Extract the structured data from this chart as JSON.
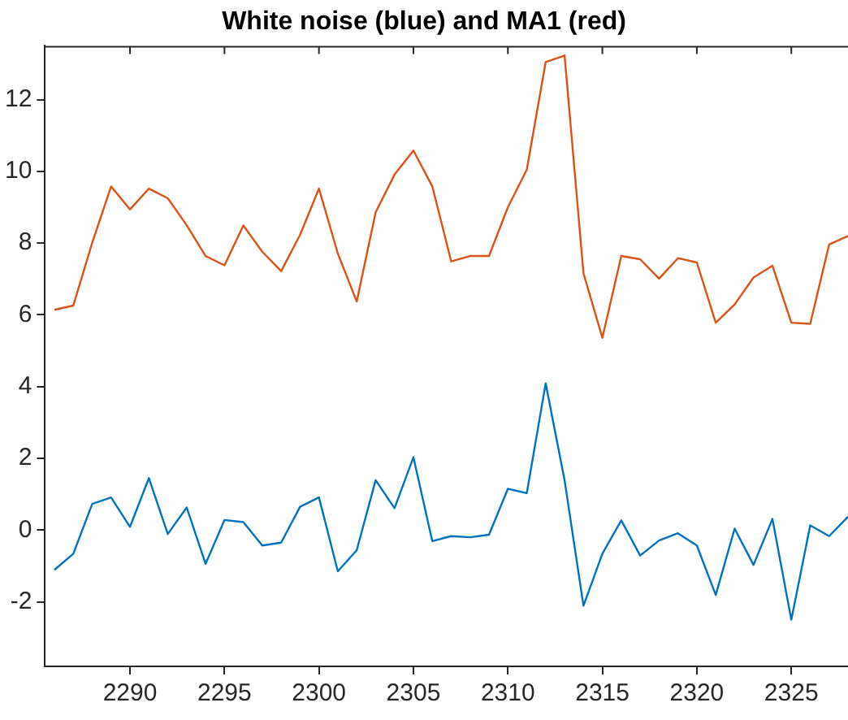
{
  "chart_data": {
    "type": "line",
    "title": "White noise (blue) and MA1 (red)",
    "x": [
      2286,
      2287,
      2288,
      2289,
      2290,
      2291,
      2292,
      2293,
      2294,
      2295,
      2296,
      2297,
      2298,
      2299,
      2300,
      2301,
      2302,
      2303,
      2304,
      2305,
      2306,
      2307,
      2308,
      2309,
      2310,
      2311,
      2312,
      2313,
      2314,
      2315,
      2316,
      2317,
      2318,
      2319,
      2320,
      2321,
      2322,
      2323,
      2324,
      2325,
      2326,
      2327,
      2328
    ],
    "series": [
      {
        "color": "#0072bd",
        "values": [
          -1.11,
          -0.66,
          0.73,
          0.91,
          0.09,
          1.45,
          -0.11,
          0.63,
          -0.94,
          0.28,
          0.22,
          -0.43,
          -0.35,
          0.65,
          0.91,
          -1.15,
          -0.56,
          1.39,
          0.61,
          2.03,
          -0.31,
          -0.17,
          -0.2,
          -0.13,
          1.15,
          1.03,
          4.09,
          1.39,
          -2.11,
          -0.66,
          0.27,
          -0.71,
          -0.29,
          -0.09,
          -0.43,
          -1.81,
          0.04,
          -0.97,
          0.31,
          -2.5,
          0.13,
          -0.17,
          0.37
        ]
      },
      {
        "color": "#d95319",
        "values": [
          6.14,
          6.26,
          8.01,
          9.58,
          8.94,
          9.52,
          9.25,
          8.5,
          7.64,
          7.38,
          8.49,
          7.76,
          7.22,
          8.23,
          9.52,
          7.71,
          6.37,
          8.86,
          9.91,
          10.58,
          9.58,
          7.49,
          7.64,
          7.64,
          9.0,
          10.05,
          13.05,
          13.23,
          7.16,
          5.36,
          7.64,
          7.55,
          7.01,
          7.58,
          7.46,
          5.78,
          6.29,
          7.04,
          7.37,
          5.78,
          5.75,
          7.96,
          8.2
        ]
      }
    ],
    "xlim": [
      2285.5,
      2328
    ],
    "xticks": [
      2290,
      2295,
      2300,
      2305,
      2310,
      2315,
      2320,
      2325
    ],
    "ylim": [
      -3.8,
      13.5
    ],
    "yticks": [
      -2,
      0,
      2,
      4,
      6,
      8,
      10,
      12
    ],
    "legend": false,
    "marker": "none",
    "line_style": "solid"
  }
}
